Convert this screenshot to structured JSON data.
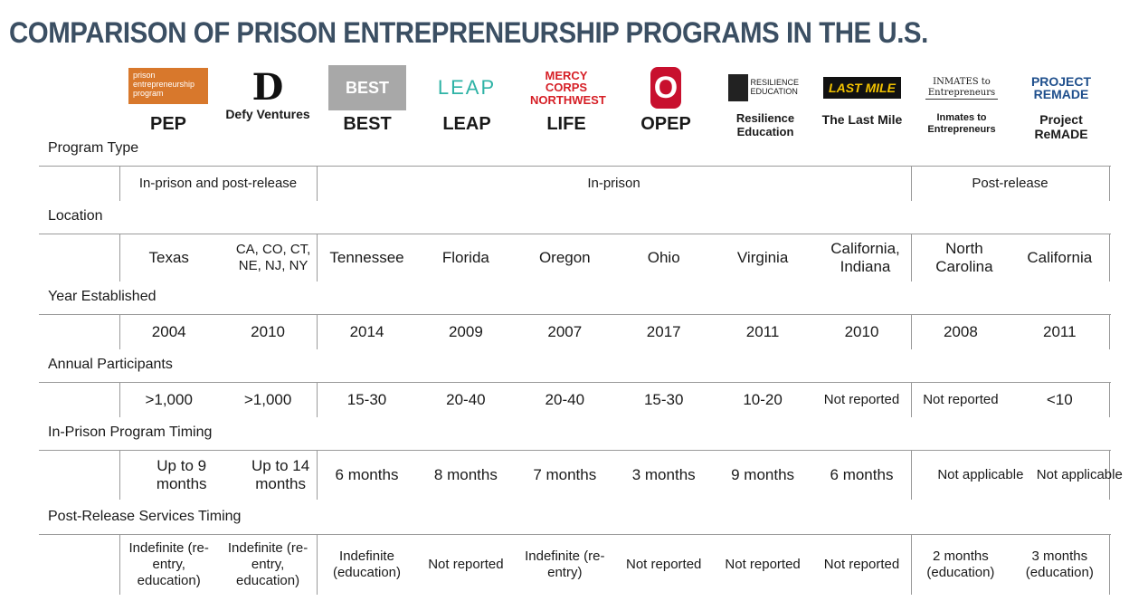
{
  "title": "COMPARISON OF PRISON ENTREPRENEURSHIP PROGRAMS IN THE U.S.",
  "programs": [
    {
      "logo_text": "prison entrepreneurship program",
      "name": "PEP"
    },
    {
      "logo_text": "D",
      "name": "Defy Ventures"
    },
    {
      "logo_text": "BEST",
      "name": "BEST"
    },
    {
      "logo_text": "LEAP",
      "name": "LEAP"
    },
    {
      "logo_text": "MERCY CORPS NORTHWEST",
      "name": "LIFE"
    },
    {
      "logo_text": "O",
      "name": "OPEP"
    },
    {
      "logo_text": "RESILIENCE EDUCATION",
      "name": "Resilience Education"
    },
    {
      "logo_text": "LAST MILE",
      "name": "The Last Mile"
    },
    {
      "logo_text": "INMATES to Entrepreneurs",
      "name": "Inmates to Entrepreneurs"
    },
    {
      "logo_text": "PROJECT REMADE",
      "name": "Project ReMADE"
    }
  ],
  "rows": {
    "type": {
      "label": "Program Type",
      "groups": [
        "In-prison and post-release",
        "In-prison",
        "Post-release"
      ]
    },
    "location": {
      "label": "Location",
      "values": [
        "Texas",
        "CA, CO, CT, NE, NJ, NY",
        "Tennessee",
        "Florida",
        "Oregon",
        "Ohio",
        "Virginia",
        "California, Indiana",
        "North Carolina",
        "California"
      ]
    },
    "year": {
      "label": "Year Established",
      "values": [
        "2004",
        "2010",
        "2014",
        "2009",
        "2007",
        "2017",
        "2011",
        "2010",
        "2008",
        "2011"
      ]
    },
    "participants": {
      "label": "Annual Participants",
      "values": [
        ">1,000",
        ">1,000",
        "15-30",
        "20-40",
        "20-40",
        "15-30",
        "10-20",
        "Not reported",
        "Not reported",
        "<10"
      ]
    },
    "inprison": {
      "label": "In-Prison Program Timing",
      "values": [
        "Up to 9 months",
        "Up to 14 months",
        "6 months",
        "8 months",
        "7 months",
        "3 months",
        "9 months",
        "6 months",
        "Not applicable",
        "Not applicable"
      ]
    },
    "postrelease": {
      "label": "Post-Release Services Timing",
      "values": [
        "Indefinite (re-entry, education)",
        "Indefinite (re-entry, education)",
        "Indefinite (education)",
        "Not reported",
        "Indefinite (re-entry)",
        "Not reported",
        "Not reported",
        "Not reported",
        "2 months (education)",
        "3 months (education)"
      ]
    }
  },
  "colors": {
    "title": "#3b4f63",
    "pep_orange": "#d8782c",
    "ohio_red": "#c8102e",
    "mercy_red": "#d61f26",
    "leap_teal": "#2fb3a6",
    "remade_blue": "#1f4f8c"
  }
}
